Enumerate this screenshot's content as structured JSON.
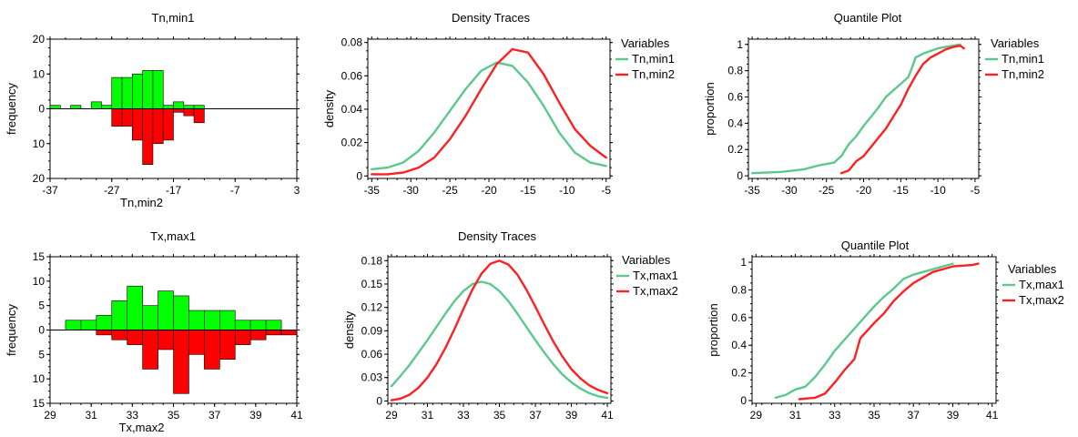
{
  "colors": {
    "green": "#00ff00",
    "red": "#ff0000",
    "line_green": "#5cc98c",
    "line_red": "#ff2020",
    "frame": "#000000"
  },
  "chart_data": [
    {
      "id": "hist1",
      "type": "bar",
      "subtype": "back-to-back histogram",
      "title": "Tn,min1",
      "xlabel": "Tn,min2",
      "ylabel": "frequency",
      "xlim": [
        -37,
        3
      ],
      "ylim": [
        -20,
        20
      ],
      "xticks": [
        "-37",
        "-27",
        "-17",
        "-7",
        "3"
      ],
      "yticks": [
        "20",
        "10",
        "0",
        "10",
        "20"
      ],
      "bin_width": 1.67,
      "series": [
        {
          "name": "Tn,min1",
          "color": "green",
          "direction": "up",
          "bins": [
            [
              -37.0,
              1
            ],
            [
              -33.67,
              1
            ],
            [
              -30.33,
              2
            ],
            [
              -28.67,
              1
            ],
            [
              -27.0,
              9
            ],
            [
              -25.33,
              9
            ],
            [
              -23.67,
              10
            ],
            [
              -22.0,
              11
            ],
            [
              -20.33,
              11
            ],
            [
              -18.67,
              1
            ],
            [
              -17.0,
              2
            ],
            [
              -15.33,
              1
            ],
            [
              -13.67,
              1
            ]
          ]
        },
        {
          "name": "Tn,min2",
          "color": "red",
          "direction": "down",
          "bins": [
            [
              -27.0,
              5
            ],
            [
              -25.33,
              5
            ],
            [
              -23.67,
              9
            ],
            [
              -22.0,
              16
            ],
            [
              -20.33,
              10
            ],
            [
              -18.67,
              9
            ],
            [
              -17.0,
              1
            ],
            [
              -15.33,
              2
            ],
            [
              -13.67,
              4
            ]
          ]
        }
      ]
    },
    {
      "id": "density1",
      "type": "line",
      "title": "Density Traces",
      "ylabel": "density",
      "xlim": [
        -35.5,
        -4.5
      ],
      "ylim": [
        -0.0015,
        0.082
      ],
      "xticks": [
        "-35",
        "-30",
        "-25",
        "-20",
        "-15",
        "-10",
        "-5"
      ],
      "yticks": [
        "0",
        "0.02",
        "0.04",
        "0.06",
        "0.08"
      ],
      "legend_title": "Variables",
      "series": [
        {
          "name": "Tn,min1",
          "color": "line_green",
          "points": [
            [
              -35,
              0.004
            ],
            [
              -33,
              0.005
            ],
            [
              -31,
              0.008
            ],
            [
              -29,
              0.015
            ],
            [
              -27,
              0.026
            ],
            [
              -25,
              0.039
            ],
            [
              -23,
              0.052
            ],
            [
              -21,
              0.063
            ],
            [
              -19,
              0.068
            ],
            [
              -17,
              0.066
            ],
            [
              -15,
              0.056
            ],
            [
              -13,
              0.042
            ],
            [
              -11,
              0.026
            ],
            [
              -9,
              0.014
            ],
            [
              -7,
              0.008
            ],
            [
              -5,
              0.006
            ]
          ]
        },
        {
          "name": "Tn,min2",
          "color": "line_red",
          "points": [
            [
              -35,
              0.001
            ],
            [
              -33,
              0.001
            ],
            [
              -31,
              0.002
            ],
            [
              -29,
              0.005
            ],
            [
              -27,
              0.011
            ],
            [
              -25,
              0.022
            ],
            [
              -23,
              0.036
            ],
            [
              -21,
              0.052
            ],
            [
              -19,
              0.067
            ],
            [
              -17,
              0.076
            ],
            [
              -15,
              0.074
            ],
            [
              -13,
              0.061
            ],
            [
              -11,
              0.044
            ],
            [
              -9,
              0.028
            ],
            [
              -7,
              0.018
            ],
            [
              -5,
              0.011
            ]
          ]
        }
      ]
    },
    {
      "id": "quantile1",
      "type": "line",
      "subtype": "empirical cdf",
      "title": "Quantile Plot",
      "ylabel": "proportion",
      "xlim": [
        -35.5,
        -4.5
      ],
      "ylim": [
        -0.02,
        1.04
      ],
      "xticks": [
        "-35",
        "-30",
        "-25",
        "-20",
        "-15",
        "-10",
        "-5"
      ],
      "yticks": [
        "0",
        "0.2",
        "0.4",
        "0.6",
        "0.8",
        "1"
      ],
      "legend_title": "Variables",
      "series": [
        {
          "name": "Tn,min1",
          "color": "line_green",
          "points": [
            [
              -35,
              0.02
            ],
            [
              -31,
              0.03
            ],
            [
              -28,
              0.05
            ],
            [
              -26,
              0.08
            ],
            [
              -24,
              0.1
            ],
            [
              -23,
              0.15
            ],
            [
              -22,
              0.24
            ],
            [
              -21,
              0.3
            ],
            [
              -20,
              0.38
            ],
            [
              -19,
              0.45
            ],
            [
              -18,
              0.52
            ],
            [
              -17,
              0.6
            ],
            [
              -16,
              0.65
            ],
            [
              -15,
              0.7
            ],
            [
              -14,
              0.75
            ],
            [
              -13.5,
              0.82
            ],
            [
              -13,
              0.9
            ],
            [
              -12,
              0.93
            ],
            [
              -11,
              0.95
            ],
            [
              -10,
              0.97
            ],
            [
              -9,
              0.98
            ],
            [
              -8,
              0.99
            ],
            [
              -7,
              1.0
            ]
          ]
        },
        {
          "name": "Tn,min2",
          "color": "line_red",
          "points": [
            [
              -23,
              0.02
            ],
            [
              -22,
              0.04
            ],
            [
              -21,
              0.11
            ],
            [
              -20,
              0.15
            ],
            [
              -19,
              0.22
            ],
            [
              -18,
              0.29
            ],
            [
              -17,
              0.36
            ],
            [
              -16,
              0.45
            ],
            [
              -15,
              0.54
            ],
            [
              -14,
              0.66
            ],
            [
              -13,
              0.76
            ],
            [
              -12,
              0.85
            ],
            [
              -11,
              0.9
            ],
            [
              -10,
              0.93
            ],
            [
              -9,
              0.96
            ],
            [
              -8,
              0.98
            ],
            [
              -7,
              0.99
            ],
            [
              -6.5,
              0.97
            ]
          ]
        }
      ]
    },
    {
      "id": "hist2",
      "type": "bar",
      "subtype": "back-to-back histogram",
      "title": "Tx,max1",
      "xlabel": "Tx,max2",
      "ylabel": "frequency",
      "xlim": [
        29,
        41
      ],
      "ylim": [
        -15,
        15
      ],
      "xticks": [
        "29",
        "31",
        "33",
        "35",
        "37",
        "39",
        "41"
      ],
      "yticks": [
        "15",
        "10",
        "5",
        "0",
        "5",
        "10",
        "15"
      ],
      "bin_width": 0.75,
      "series": [
        {
          "name": "Tx,max1",
          "color": "green",
          "direction": "up",
          "bins": [
            [
              29.75,
              2
            ],
            [
              30.5,
              2
            ],
            [
              31.25,
              3
            ],
            [
              32.0,
              6
            ],
            [
              32.75,
              9
            ],
            [
              33.5,
              5
            ],
            [
              34.25,
              8
            ],
            [
              35.0,
              7
            ],
            [
              35.75,
              4
            ],
            [
              36.5,
              4
            ],
            [
              37.25,
              4
            ],
            [
              38.0,
              2
            ],
            [
              38.75,
              2
            ],
            [
              39.5,
              2
            ]
          ]
        },
        {
          "name": "Tx,max2",
          "color": "red",
          "direction": "down",
          "bins": [
            [
              31.25,
              1
            ],
            [
              32.0,
              2
            ],
            [
              32.75,
              3
            ],
            [
              33.5,
              8
            ],
            [
              34.25,
              4
            ],
            [
              35.0,
              13
            ],
            [
              35.75,
              5
            ],
            [
              36.5,
              8
            ],
            [
              37.25,
              6
            ],
            [
              38.0,
              3
            ],
            [
              38.75,
              2
            ],
            [
              39.5,
              1
            ],
            [
              40.25,
              1
            ]
          ]
        }
      ]
    },
    {
      "id": "density2",
      "type": "line",
      "title": "Density Traces",
      "ylabel": "density",
      "xlim": [
        28.8,
        41.2
      ],
      "ylim": [
        -0.003,
        0.185
      ],
      "xticks": [
        "29",
        "31",
        "33",
        "35",
        "37",
        "39",
        "41"
      ],
      "yticks": [
        "0",
        "0.03",
        "0.06",
        "0.09",
        "0.12",
        "0.15",
        "0.18"
      ],
      "legend_title": "Variables",
      "series": [
        {
          "name": "Tx,max1",
          "color": "line_green",
          "points": [
            [
              29,
              0.019
            ],
            [
              29.5,
              0.032
            ],
            [
              30,
              0.046
            ],
            [
              30.5,
              0.062
            ],
            [
              31,
              0.078
            ],
            [
              31.5,
              0.095
            ],
            [
              32,
              0.112
            ],
            [
              32.5,
              0.128
            ],
            [
              33,
              0.141
            ],
            [
              33.5,
              0.15
            ],
            [
              34,
              0.153
            ],
            [
              34.5,
              0.15
            ],
            [
              35,
              0.141
            ],
            [
              35.5,
              0.128
            ],
            [
              36,
              0.112
            ],
            [
              36.5,
              0.095
            ],
            [
              37,
              0.078
            ],
            [
              37.5,
              0.062
            ],
            [
              38,
              0.047
            ],
            [
              38.5,
              0.034
            ],
            [
              39,
              0.024
            ],
            [
              39.5,
              0.016
            ],
            [
              40,
              0.01
            ],
            [
              40.5,
              0.006
            ],
            [
              41,
              0.004
            ]
          ]
        },
        {
          "name": "Tx,max2",
          "color": "line_red",
          "points": [
            [
              29,
              0.001
            ],
            [
              29.5,
              0.003
            ],
            [
              30,
              0.008
            ],
            [
              30.5,
              0.017
            ],
            [
              31,
              0.03
            ],
            [
              31.5,
              0.047
            ],
            [
              32,
              0.068
            ],
            [
              32.5,
              0.092
            ],
            [
              33,
              0.118
            ],
            [
              33.5,
              0.143
            ],
            [
              34,
              0.163
            ],
            [
              34.5,
              0.176
            ],
            [
              35,
              0.18
            ],
            [
              35.5,
              0.175
            ],
            [
              36,
              0.162
            ],
            [
              36.5,
              0.143
            ],
            [
              37,
              0.121
            ],
            [
              37.5,
              0.098
            ],
            [
              38,
              0.076
            ],
            [
              38.5,
              0.057
            ],
            [
              39,
              0.041
            ],
            [
              39.5,
              0.029
            ],
            [
              40,
              0.02
            ],
            [
              40.5,
              0.014
            ],
            [
              41,
              0.01
            ]
          ]
        }
      ]
    },
    {
      "id": "quantile2",
      "type": "line",
      "subtype": "empirical cdf",
      "title": "Quantile Plot",
      "ylabel": "proportion",
      "xlim": [
        28.8,
        41.2
      ],
      "ylim": [
        -0.02,
        1.04
      ],
      "xticks": [
        "29",
        "31",
        "33",
        "35",
        "37",
        "39",
        "41"
      ],
      "yticks": [
        "0",
        "0.2",
        "0.4",
        "0.6",
        "0.8",
        "1"
      ],
      "legend_title": "Variables",
      "series": [
        {
          "name": "Tx,max1",
          "color": "line_green",
          "points": [
            [
              30,
              0.02
            ],
            [
              30.5,
              0.04
            ],
            [
              31,
              0.08
            ],
            [
              31.5,
              0.1
            ],
            [
              32,
              0.17
            ],
            [
              32.5,
              0.26
            ],
            [
              33,
              0.36
            ],
            [
              33.5,
              0.44
            ],
            [
              34,
              0.52
            ],
            [
              34.5,
              0.6
            ],
            [
              35,
              0.68
            ],
            [
              35.5,
              0.75
            ],
            [
              36,
              0.81
            ],
            [
              36.5,
              0.88
            ],
            [
              37,
              0.91
            ],
            [
              37.5,
              0.93
            ],
            [
              38,
              0.95
            ],
            [
              38.5,
              0.97
            ],
            [
              39,
              0.99
            ]
          ]
        },
        {
          "name": "Tx,max2",
          "color": "line_red",
          "points": [
            [
              31.2,
              0.01
            ],
            [
              32,
              0.02
            ],
            [
              32.5,
              0.05
            ],
            [
              33,
              0.13
            ],
            [
              33.5,
              0.22
            ],
            [
              34,
              0.3
            ],
            [
              34.3,
              0.45
            ],
            [
              35,
              0.56
            ],
            [
              35.5,
              0.63
            ],
            [
              36,
              0.72
            ],
            [
              36.5,
              0.79
            ],
            [
              37,
              0.85
            ],
            [
              37.5,
              0.89
            ],
            [
              38,
              0.93
            ],
            [
              38.5,
              0.95
            ],
            [
              39,
              0.97
            ],
            [
              40,
              0.98
            ],
            [
              40.3,
              0.99
            ]
          ]
        }
      ]
    }
  ]
}
